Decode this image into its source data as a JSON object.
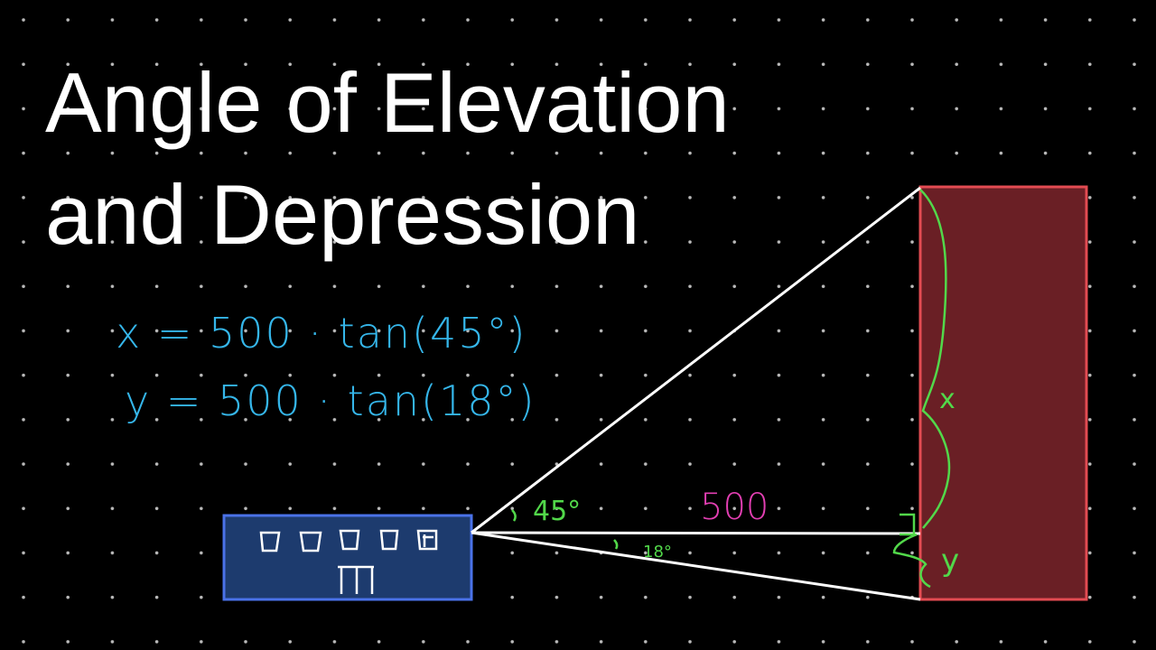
{
  "title": {
    "line1": "Angle of Elevation",
    "line2": "and Depression"
  },
  "equations": [
    "x = 500 · tan(45°)",
    "y = 500 · tan(18°)"
  ],
  "labels": {
    "elevation_angle": "45°",
    "distance": "500",
    "depression_angle": "18°",
    "x": "x",
    "y": "y"
  }
}
